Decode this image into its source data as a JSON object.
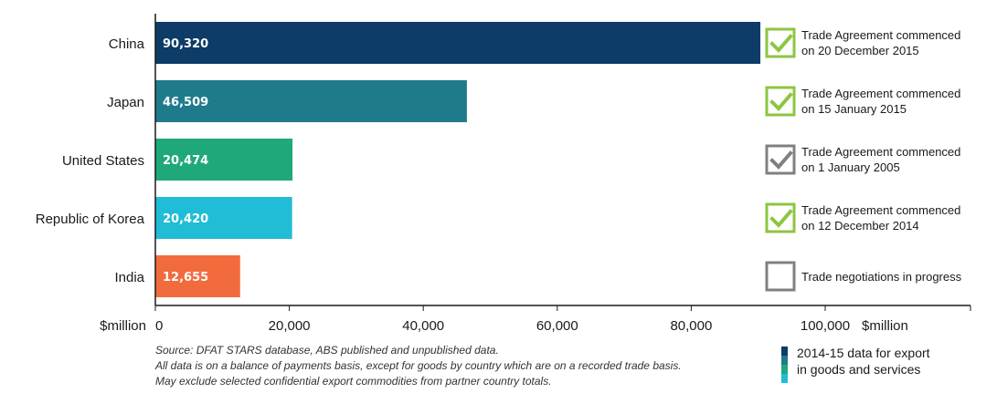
{
  "chart_data": {
    "type": "bar",
    "orientation": "horizontal",
    "categories": [
      "China",
      "Japan",
      "United States",
      "Republic of Korea",
      "India"
    ],
    "values": [
      90320,
      46509,
      20474,
      20420,
      12655
    ],
    "value_labels": [
      "90,320",
      "46,509",
      "20,474",
      "20,420",
      "12,655"
    ],
    "bar_colors": [
      "#0c3c67",
      "#1f7a8c",
      "#1fa97a",
      "#21bcd6",
      "#f26b3c"
    ],
    "xlim": [
      0,
      110000
    ],
    "xticks": [
      0,
      20000,
      40000,
      60000,
      80000,
      100000
    ],
    "xtick_labels": [
      "0",
      "20,000",
      "40,000",
      "60,000",
      "80,000",
      "100,000"
    ],
    "xlabel_left": "$million",
    "xlabel_right": "$million",
    "grid": false
  },
  "status": [
    {
      "icon": "green-check-icon",
      "checked": true,
      "color": "#8cc63f",
      "lines": [
        "Trade Agreement commenced",
        "on 20 December 2015"
      ]
    },
    {
      "icon": "green-check-icon",
      "checked": true,
      "color": "#8cc63f",
      "lines": [
        "Trade Agreement commenced",
        "on 15 January 2015"
      ]
    },
    {
      "icon": "grey-check-icon",
      "checked": true,
      "color": "#808080",
      "lines": [
        "Trade Agreement commenced",
        "on 1 January 2005"
      ]
    },
    {
      "icon": "green-check-icon",
      "checked": true,
      "color": "#8cc63f",
      "lines": [
        "Trade Agreement commenced",
        "on 12 December 2014"
      ]
    },
    {
      "icon": "empty-checkbox-icon",
      "checked": false,
      "color": "#808080",
      "lines": [
        "Trade negotiations in progress"
      ]
    }
  ],
  "source_lines": [
    "Source: DFAT STARS database, ABS published and unpublished data.",
    "All data is on a balance of payments basis, except for goods by country which are on a recorded trade basis.",
    "May exclude selected confidential export commodities from partner country totals."
  ],
  "legend": {
    "label_line1": "2014-15 data for export",
    "label_line2": "in goods and services",
    "colors": [
      "#0c3c67",
      "#1f7a8c",
      "#1fa97a",
      "#21bcd6",
      "#f26b3c"
    ]
  }
}
